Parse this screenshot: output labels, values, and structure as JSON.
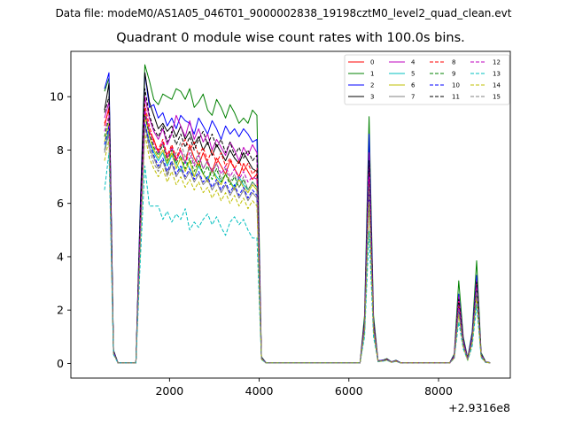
{
  "figure": {
    "suptitle": "Data file: modeM0/AS1A05_046T01_9000002838_19198cztM0_level2_quad_clean.evt"
  },
  "chart_data": {
    "type": "line",
    "title": "Quadrant 0 module wise count rates with 100.0s bins.",
    "xlabel": "",
    "ylabel": "",
    "x_offset_label": "+2.9316e8",
    "xlim": [
      -200,
      9600
    ],
    "ylim": [
      -0.55,
      11.7
    ],
    "xticks": [
      2000,
      4000,
      6000,
      8000
    ],
    "xtick_labels": [
      "2000",
      "4000",
      "6000",
      "8000"
    ],
    "yticks": [
      0,
      2,
      4,
      6,
      8,
      10
    ],
    "ytick_labels": [
      "0",
      "2",
      "4",
      "6",
      "8",
      "10"
    ],
    "grid": false,
    "legend_placement": "top-right",
    "legend_columns": 4,
    "x": [
      550,
      650,
      750,
      850,
      950,
      1050,
      1150,
      1250,
      1350,
      1450,
      1550,
      1650,
      1750,
      1850,
      1950,
      2050,
      2150,
      2250,
      2350,
      2450,
      2550,
      2650,
      2750,
      2850,
      2950,
      3050,
      3150,
      3250,
      3350,
      3450,
      3550,
      3650,
      3750,
      3850,
      3950,
      4050,
      4150,
      4250,
      4350,
      4450,
      6250,
      6350,
      6450,
      6550,
      6650,
      6750,
      6850,
      6950,
      7050,
      7150,
      7250,
      8250,
      8350,
      8450,
      8550,
      8650,
      8750,
      8850,
      8950,
      9050,
      9150
    ],
    "series": [
      {
        "name": "0",
        "color": "#ff0000",
        "dash": "solid",
        "values": [
          8.9,
          9.6,
          0.45,
          0.02,
          0.02,
          0.02,
          0.02,
          0.02,
          5.0,
          9.5,
          8.7,
          8.4,
          7.9,
          8.3,
          7.7,
          8.1,
          7.6,
          8.0,
          7.5,
          8.2,
          7.7,
          7.4,
          7.9,
          7.5,
          7.2,
          7.7,
          7.4,
          7.1,
          7.6,
          7.3,
          7.0,
          7.5,
          7.2,
          6.9,
          7.1,
          0.2,
          0.02,
          0.02,
          0.02,
          0.02,
          0.02,
          1.4,
          7.5,
          1.4,
          0.08,
          0.1,
          0.15,
          0.05,
          0.1,
          0.02,
          0.02,
          0.02,
          0.25,
          2.3,
          0.8,
          0.15,
          0.95,
          3.0,
          0.3,
          0.05,
          0.02
        ]
      },
      {
        "name": "1",
        "color": "#008000",
        "dash": "solid",
        "values": [
          10.2,
          10.7,
          0.5,
          0.03,
          0.03,
          0.03,
          0.03,
          0.03,
          6.0,
          11.2,
          10.6,
          9.9,
          9.7,
          10.1,
          10.0,
          9.9,
          10.3,
          10.2,
          9.9,
          10.3,
          9.6,
          9.8,
          10.1,
          9.5,
          9.3,
          9.9,
          9.6,
          9.2,
          9.7,
          9.4,
          9.0,
          9.2,
          9.0,
          9.5,
          9.3,
          0.25,
          0.03,
          0.03,
          0.03,
          0.03,
          0.03,
          1.8,
          9.25,
          1.8,
          0.1,
          0.12,
          0.18,
          0.06,
          0.12,
          0.03,
          0.03,
          0.03,
          0.35,
          3.1,
          1.0,
          0.2,
          1.2,
          3.85,
          0.4,
          0.06,
          0.03
        ]
      },
      {
        "name": "2",
        "color": "#0000ff",
        "dash": "solid",
        "values": [
          10.3,
          10.9,
          0.48,
          0.03,
          0.03,
          0.03,
          0.03,
          0.03,
          5.9,
          10.9,
          9.6,
          9.7,
          9.2,
          9.4,
          8.9,
          9.2,
          8.8,
          9.3,
          9.1,
          9.0,
          8.6,
          9.2,
          8.9,
          8.6,
          9.1,
          8.8,
          8.4,
          8.9,
          8.6,
          8.8,
          8.5,
          8.8,
          8.6,
          8.3,
          8.4,
          0.22,
          0.03,
          0.03,
          0.03,
          0.03,
          0.03,
          1.6,
          8.6,
          1.6,
          0.1,
          0.12,
          0.16,
          0.06,
          0.11,
          0.03,
          0.03,
          0.03,
          0.3,
          2.6,
          0.9,
          0.18,
          1.1,
          3.3,
          0.35,
          0.05,
          0.03
        ]
      },
      {
        "name": "3",
        "color": "#000000",
        "dash": "solid",
        "values": [
          9.5,
          10.5,
          0.45,
          0.02,
          0.02,
          0.02,
          0.02,
          0.02,
          5.6,
          10.9,
          9.8,
          9.3,
          8.8,
          9.0,
          8.7,
          8.9,
          8.5,
          8.9,
          8.4,
          8.7,
          8.2,
          8.5,
          8.0,
          8.3,
          7.8,
          8.2,
          7.9,
          7.6,
          8.0,
          7.7,
          7.5,
          7.9,
          7.6,
          7.3,
          7.2,
          0.2,
          0.02,
          0.02,
          0.02,
          0.02,
          0.02,
          1.5,
          7.2,
          1.5,
          0.09,
          0.1,
          0.15,
          0.05,
          0.1,
          0.02,
          0.02,
          0.02,
          0.25,
          2.2,
          0.8,
          0.15,
          0.9,
          2.9,
          0.3,
          0.05,
          0.02
        ]
      },
      {
        "name": "4",
        "color": "#bf00bf",
        "dash": "solid",
        "values": [
          9.2,
          9.8,
          0.42,
          0.02,
          0.02,
          0.02,
          0.02,
          0.02,
          5.3,
          10.0,
          9.2,
          8.7,
          8.4,
          8.8,
          8.2,
          8.6,
          9.3,
          8.9,
          8.5,
          9.1,
          8.4,
          8.8,
          8.3,
          8.6,
          8.0,
          8.4,
          8.1,
          7.8,
          8.3,
          8.0,
          7.6,
          8.1,
          7.8,
          8.2,
          7.9,
          0.2,
          0.02,
          0.02,
          0.02,
          0.02,
          0.02,
          1.5,
          7.9,
          1.5,
          0.09,
          0.11,
          0.15,
          0.05,
          0.1,
          0.02,
          0.02,
          0.02,
          0.28,
          2.5,
          0.85,
          0.16,
          1.0,
          3.1,
          0.32,
          0.05,
          0.02
        ]
      },
      {
        "name": "5",
        "color": "#00bfbf",
        "dash": "solid",
        "values": [
          8.0,
          8.8,
          0.4,
          0.02,
          0.02,
          0.02,
          0.02,
          0.02,
          4.8,
          9.0,
          8.3,
          7.9,
          7.6,
          7.9,
          7.4,
          7.8,
          7.5,
          7.2,
          7.6,
          7.3,
          7.0,
          7.4,
          7.1,
          6.9,
          7.3,
          7.0,
          6.8,
          7.1,
          6.8,
          6.6,
          7.0,
          6.7,
          6.5,
          6.8,
          6.6,
          0.18,
          0.02,
          0.02,
          0.02,
          0.02,
          0.02,
          1.3,
          6.5,
          1.3,
          0.08,
          0.1,
          0.14,
          0.05,
          0.09,
          0.02,
          0.02,
          0.02,
          0.22,
          2.0,
          0.7,
          0.14,
          0.85,
          2.7,
          0.28,
          0.04,
          0.02
        ]
      },
      {
        "name": "6",
        "color": "#bfbf00",
        "dash": "solid",
        "values": [
          8.3,
          9.0,
          0.4,
          0.02,
          0.02,
          0.02,
          0.02,
          0.02,
          4.9,
          9.3,
          8.5,
          8.0,
          7.7,
          8.0,
          7.5,
          7.9,
          7.3,
          7.7,
          7.2,
          7.6,
          7.0,
          7.5,
          7.1,
          6.8,
          7.3,
          6.9,
          6.7,
          7.1,
          6.8,
          6.5,
          6.9,
          6.6,
          6.4,
          6.7,
          6.5,
          0.18,
          0.02,
          0.02,
          0.02,
          0.02,
          0.02,
          1.3,
          6.6,
          1.3,
          0.08,
          0.1,
          0.14,
          0.05,
          0.09,
          0.02,
          0.02,
          0.02,
          0.22,
          2.0,
          0.7,
          0.14,
          0.85,
          2.7,
          0.28,
          0.04,
          0.02
        ]
      },
      {
        "name": "7",
        "color": "#808080",
        "dash": "solid",
        "values": [
          7.9,
          8.7,
          0.38,
          0.02,
          0.02,
          0.02,
          0.02,
          0.02,
          4.7,
          9.0,
          8.1,
          7.7,
          7.3,
          7.6,
          7.1,
          7.5,
          7.0,
          7.3,
          6.9,
          7.2,
          6.8,
          7.1,
          6.7,
          6.9,
          6.5,
          6.8,
          6.4,
          6.7,
          6.3,
          6.6,
          6.2,
          6.5,
          6.1,
          6.4,
          6.2,
          0.17,
          0.02,
          0.02,
          0.02,
          0.02,
          0.02,
          1.2,
          6.3,
          1.2,
          0.07,
          0.09,
          0.13,
          0.04,
          0.08,
          0.02,
          0.02,
          0.02,
          0.2,
          1.9,
          0.65,
          0.13,
          0.8,
          2.6,
          0.26,
          0.04,
          0.02
        ]
      },
      {
        "name": "8",
        "color": "#ff0000",
        "dash": "dashed",
        "values": [
          9.0,
          9.5,
          0.43,
          0.02,
          0.02,
          0.02,
          0.02,
          0.02,
          5.2,
          9.7,
          8.9,
          8.3,
          8.0,
          8.4,
          7.8,
          8.2,
          7.7,
          8.1,
          8.4,
          8.0,
          8.3,
          7.8,
          8.1,
          7.6,
          8.0,
          7.5,
          7.9,
          7.4,
          7.7,
          7.3,
          7.6,
          7.2,
          7.5,
          7.1,
          7.3,
          0.19,
          0.02,
          0.02,
          0.02,
          0.02,
          0.02,
          1.45,
          7.4,
          1.45,
          0.09,
          0.1,
          0.15,
          0.05,
          0.1,
          0.02,
          0.02,
          0.02,
          0.25,
          2.3,
          0.8,
          0.15,
          0.95,
          3.0,
          0.3,
          0.05,
          0.02
        ]
      },
      {
        "name": "9",
        "color": "#008000",
        "dash": "dashed",
        "values": [
          8.5,
          9.2,
          0.41,
          0.02,
          0.02,
          0.02,
          0.02,
          0.02,
          5.0,
          9.3,
          8.6,
          8.1,
          7.8,
          8.2,
          7.6,
          8.0,
          7.5,
          7.8,
          7.3,
          7.7,
          7.2,
          7.6,
          7.1,
          7.4,
          6.9,
          7.3,
          6.8,
          7.1,
          6.7,
          7.0,
          6.6,
          6.9,
          6.5,
          6.8,
          6.6,
          0.18,
          0.02,
          0.02,
          0.02,
          0.02,
          0.02,
          1.35,
          6.8,
          1.35,
          0.08,
          0.1,
          0.14,
          0.05,
          0.09,
          0.02,
          0.02,
          0.02,
          0.23,
          2.1,
          0.75,
          0.14,
          0.9,
          2.8,
          0.28,
          0.04,
          0.02
        ]
      },
      {
        "name": "10",
        "color": "#0000ff",
        "dash": "dashed",
        "values": [
          8.2,
          8.9,
          0.4,
          0.02,
          0.02,
          0.02,
          0.02,
          0.02,
          4.9,
          9.0,
          8.3,
          7.8,
          7.4,
          7.7,
          7.2,
          7.6,
          7.1,
          7.4,
          7.0,
          7.3,
          6.9,
          7.2,
          6.8,
          7.0,
          6.6,
          6.9,
          6.5,
          6.8,
          6.4,
          6.7,
          6.3,
          6.6,
          6.2,
          6.5,
          6.3,
          0.17,
          0.02,
          0.02,
          0.02,
          0.02,
          0.02,
          1.3,
          6.5,
          1.3,
          0.08,
          0.09,
          0.13,
          0.04,
          0.08,
          0.02,
          0.02,
          0.02,
          0.22,
          2.0,
          0.7,
          0.13,
          0.85,
          2.7,
          0.27,
          0.04,
          0.02
        ]
      },
      {
        "name": "11",
        "color": "#000000",
        "dash": "dashed",
        "values": [
          9.4,
          10.0,
          0.44,
          0.02,
          0.02,
          0.02,
          0.02,
          0.02,
          5.5,
          10.3,
          9.3,
          8.8,
          8.5,
          8.9,
          8.3,
          8.7,
          8.2,
          8.6,
          8.1,
          8.5,
          8.0,
          8.4,
          8.7,
          8.2,
          8.6,
          8.1,
          8.4,
          7.9,
          8.3,
          7.8,
          8.1,
          7.7,
          8.0,
          7.6,
          7.8,
          0.2,
          0.02,
          0.02,
          0.02,
          0.02,
          0.02,
          1.5,
          7.6,
          1.5,
          0.09,
          0.11,
          0.15,
          0.05,
          0.1,
          0.02,
          0.02,
          0.02,
          0.26,
          2.4,
          0.82,
          0.15,
          0.98,
          3.05,
          0.31,
          0.05,
          0.02
        ]
      },
      {
        "name": "12",
        "color": "#bf00bf",
        "dash": "dashed",
        "values": [
          8.7,
          9.3,
          0.41,
          0.02,
          0.02,
          0.02,
          0.02,
          0.02,
          5.1,
          9.5,
          8.7,
          8.2,
          7.9,
          8.3,
          7.7,
          8.1,
          7.6,
          8.0,
          7.5,
          7.9,
          7.4,
          7.8,
          7.3,
          7.6,
          7.2,
          7.5,
          7.1,
          7.4,
          7.0,
          7.3,
          6.9,
          7.2,
          6.8,
          7.0,
          6.9,
          0.19,
          0.02,
          0.02,
          0.02,
          0.02,
          0.02,
          1.4,
          7.0,
          1.4,
          0.08,
          0.1,
          0.14,
          0.05,
          0.09,
          0.02,
          0.02,
          0.02,
          0.24,
          2.2,
          0.78,
          0.14,
          0.92,
          2.9,
          0.29,
          0.04,
          0.02
        ]
      },
      {
        "name": "13",
        "color": "#00bfbf",
        "dash": "dashed",
        "values": [
          6.5,
          7.9,
          0.33,
          0.02,
          0.02,
          0.02,
          0.02,
          0.02,
          3.9,
          7.4,
          5.9,
          5.9,
          5.9,
          5.4,
          5.7,
          5.3,
          5.6,
          5.4,
          5.8,
          5.0,
          5.3,
          5.1,
          5.4,
          5.6,
          5.2,
          5.5,
          5.1,
          4.8,
          5.3,
          5.5,
          5.2,
          5.4,
          5.0,
          4.7,
          4.7,
          0.14,
          0.02,
          0.02,
          0.02,
          0.02,
          0.02,
          1.0,
          4.95,
          1.0,
          0.06,
          0.08,
          0.11,
          0.04,
          0.07,
          0.02,
          0.02,
          0.02,
          0.18,
          1.55,
          0.55,
          0.11,
          0.65,
          2.2,
          0.22,
          0.03,
          0.02
        ]
      },
      {
        "name": "14",
        "color": "#bfbf00",
        "dash": "dashed",
        "values": [
          7.6,
          8.4,
          0.37,
          0.02,
          0.02,
          0.02,
          0.02,
          0.02,
          4.5,
          8.6,
          7.7,
          7.3,
          7.0,
          7.3,
          6.8,
          7.2,
          6.7,
          7.0,
          6.6,
          6.9,
          6.5,
          6.8,
          6.4,
          6.6,
          6.2,
          6.5,
          6.1,
          6.4,
          6.0,
          6.3,
          5.9,
          6.2,
          5.8,
          6.1,
          5.9,
          0.16,
          0.02,
          0.02,
          0.02,
          0.02,
          0.02,
          1.2,
          6.0,
          1.2,
          0.07,
          0.09,
          0.12,
          0.04,
          0.08,
          0.02,
          0.02,
          0.02,
          0.2,
          1.85,
          0.62,
          0.12,
          0.78,
          2.5,
          0.25,
          0.04,
          0.02
        ]
      },
      {
        "name": "15",
        "color": "#808080",
        "dash": "dashed",
        "values": [
          8.0,
          8.6,
          0.39,
          0.02,
          0.02,
          0.02,
          0.02,
          0.02,
          4.7,
          8.9,
          8.0,
          7.5,
          7.2,
          7.6,
          7.0,
          7.5,
          7.9,
          8.3,
          7.7,
          8.1,
          7.5,
          7.9,
          7.3,
          7.6,
          7.1,
          7.5,
          6.9,
          7.3,
          6.8,
          7.1,
          6.6,
          7.0,
          6.5,
          6.8,
          6.6,
          0.18,
          0.02,
          0.02,
          0.02,
          0.02,
          0.02,
          1.3,
          6.6,
          1.3,
          0.08,
          0.1,
          0.13,
          0.05,
          0.09,
          0.02,
          0.02,
          0.02,
          0.22,
          2.0,
          0.7,
          0.13,
          0.85,
          2.7,
          0.27,
          0.04,
          0.02
        ]
      }
    ]
  }
}
